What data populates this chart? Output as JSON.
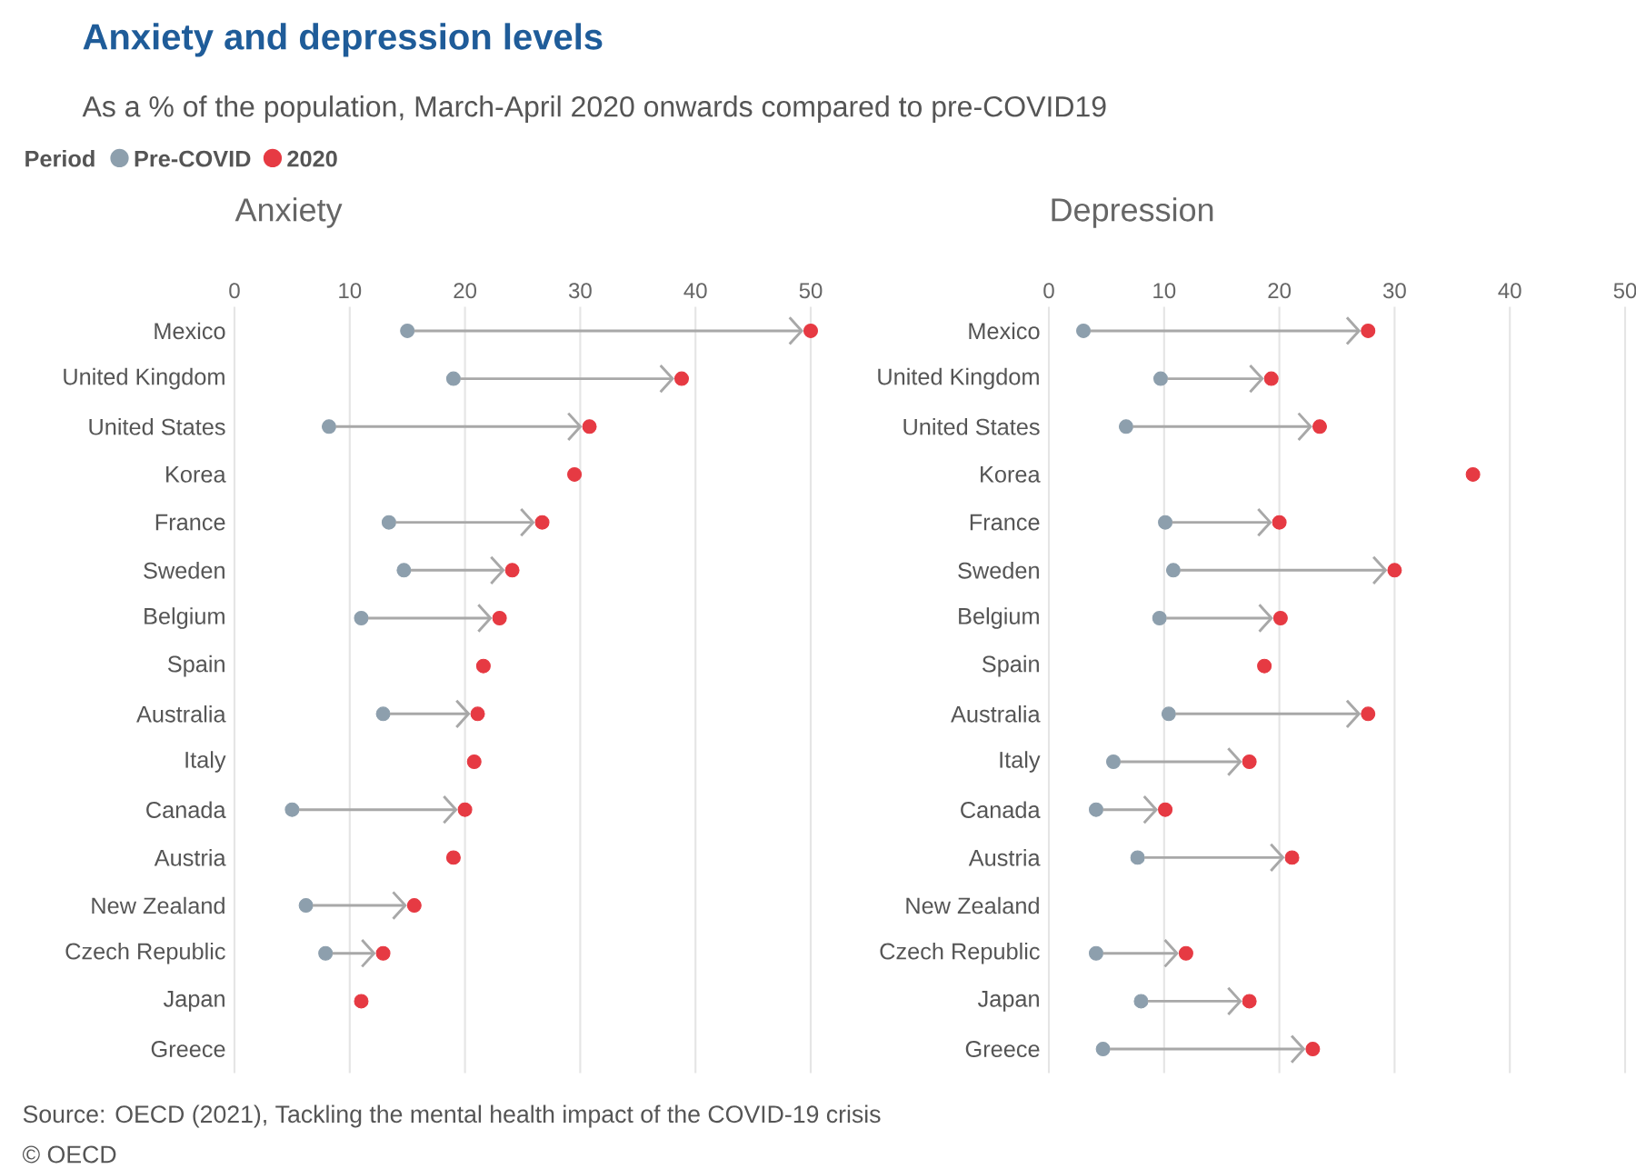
{
  "chart_data": [
    {
      "type": "scatter",
      "orientation": "horizontal",
      "title": "Anxiety",
      "categories": [
        "Mexico",
        "United Kingdom",
        "United States",
        "Korea",
        "France",
        "Sweden",
        "Belgium",
        "Spain",
        "Australia",
        "Italy",
        "Canada",
        "Austria",
        "New Zealand",
        "Czech Republic",
        "Japan",
        "Greece"
      ],
      "xlim": [
        0,
        50
      ],
      "xticks": [
        0,
        10,
        20,
        30,
        40,
        50
      ],
      "grid": "x",
      "legend": "top left",
      "legend_title": "Period",
      "series": [
        {
          "name": "Pre-COVID",
          "color": "#8d9fad",
          "values": [
            15,
            19,
            8.2,
            null,
            13.4,
            14.7,
            11,
            null,
            12.9,
            null,
            5,
            null,
            6.2,
            7.9,
            null,
            null
          ]
        },
        {
          "name": "2020",
          "color": "#e63a43",
          "values": [
            50,
            38.8,
            30.8,
            29.5,
            26.7,
            24.1,
            23,
            21.6,
            21.1,
            20.8,
            20,
            19,
            15.6,
            12.9,
            11,
            null
          ]
        }
      ],
      "annotations": [
        "Anxiety and depression levels",
        "As a % of the population, March-April 2020 onwards compared to pre-COVID19",
        "Source: OECD (2021), Tackling the mental health impact of the COVID-19 crisis",
        "© OECD"
      ]
    },
    {
      "type": "scatter",
      "orientation": "horizontal",
      "title": "Depression",
      "categories": [
        "Mexico",
        "United Kingdom",
        "United States",
        "Korea",
        "France",
        "Sweden",
        "Belgium",
        "Spain",
        "Australia",
        "Italy",
        "Canada",
        "Austria",
        "New Zealand",
        "Czech Republic",
        "Japan",
        "Greece"
      ],
      "xlim": [
        0,
        50
      ],
      "xticks": [
        0,
        10,
        20,
        30,
        40,
        50
      ],
      "grid": "x",
      "series": [
        {
          "color": "#8d9fad",
          "values": [
            3,
            9.7,
            6.7,
            null,
            10.1,
            10.8,
            9.6,
            null,
            10.4,
            5.6,
            4.1,
            7.7,
            null,
            4.1,
            8,
            4.7
          ]
        },
        {
          "color": "#e63a43",
          "values": [
            27.7,
            19.3,
            23.5,
            36.8,
            20,
            30,
            20.1,
            18.7,
            27.7,
            17.4,
            10.1,
            21.1,
            null,
            11.9,
            17.4,
            22.9
          ]
        }
      ]
    }
  ]
}
